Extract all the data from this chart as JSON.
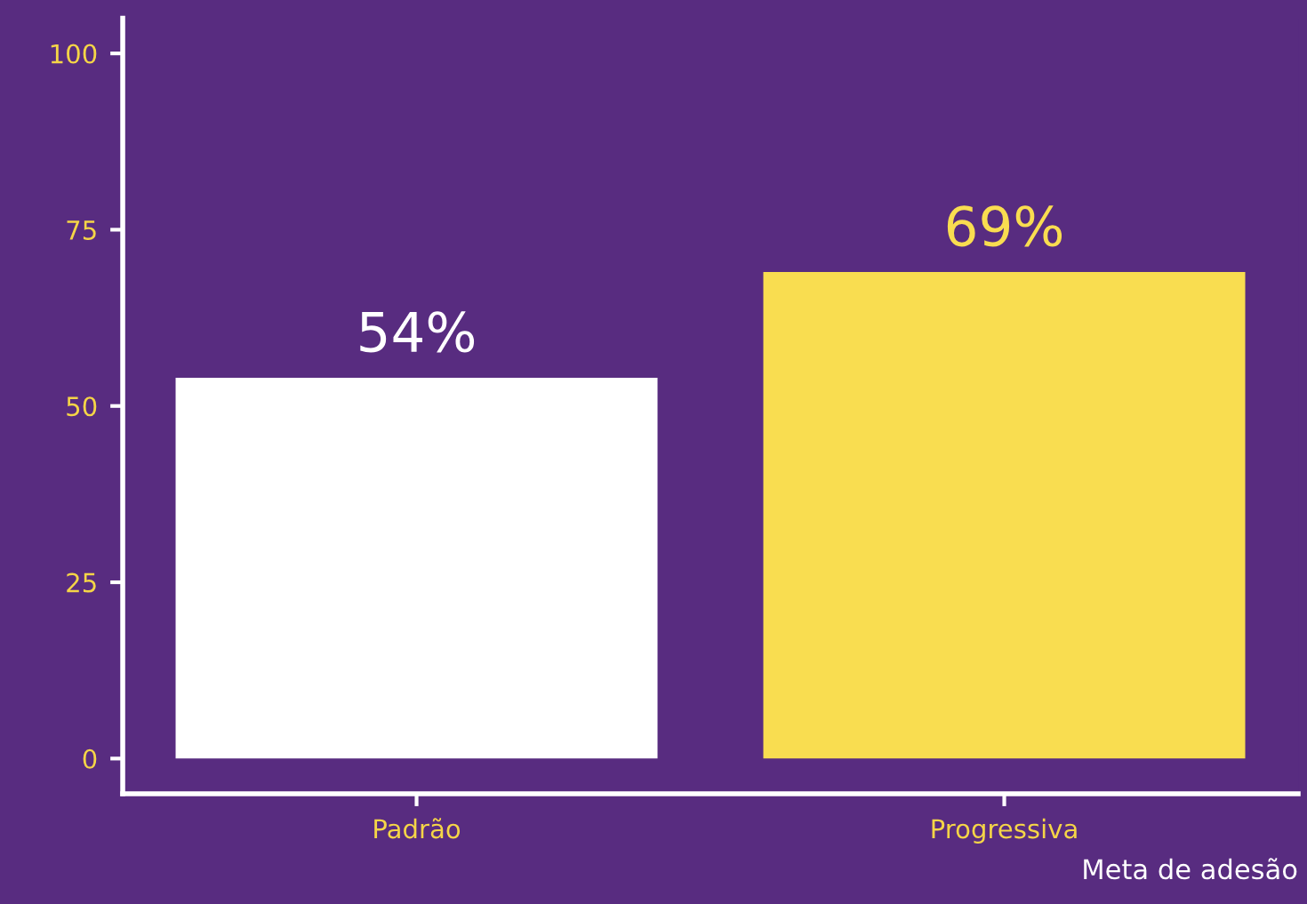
{
  "chart_data": {
    "type": "bar",
    "xlabel": "Meta de adesão",
    "categories": [
      "Padrão",
      "Progressiva"
    ],
    "values": [
      54,
      69
    ],
    "colors": [
      "#ffffff",
      "#f9dd50"
    ],
    "value_labels": [
      "54%",
      "69%"
    ],
    "ylim": [
      -5,
      105
    ],
    "yticks": [
      0,
      25,
      50,
      75,
      100
    ],
    "grid": false
  }
}
